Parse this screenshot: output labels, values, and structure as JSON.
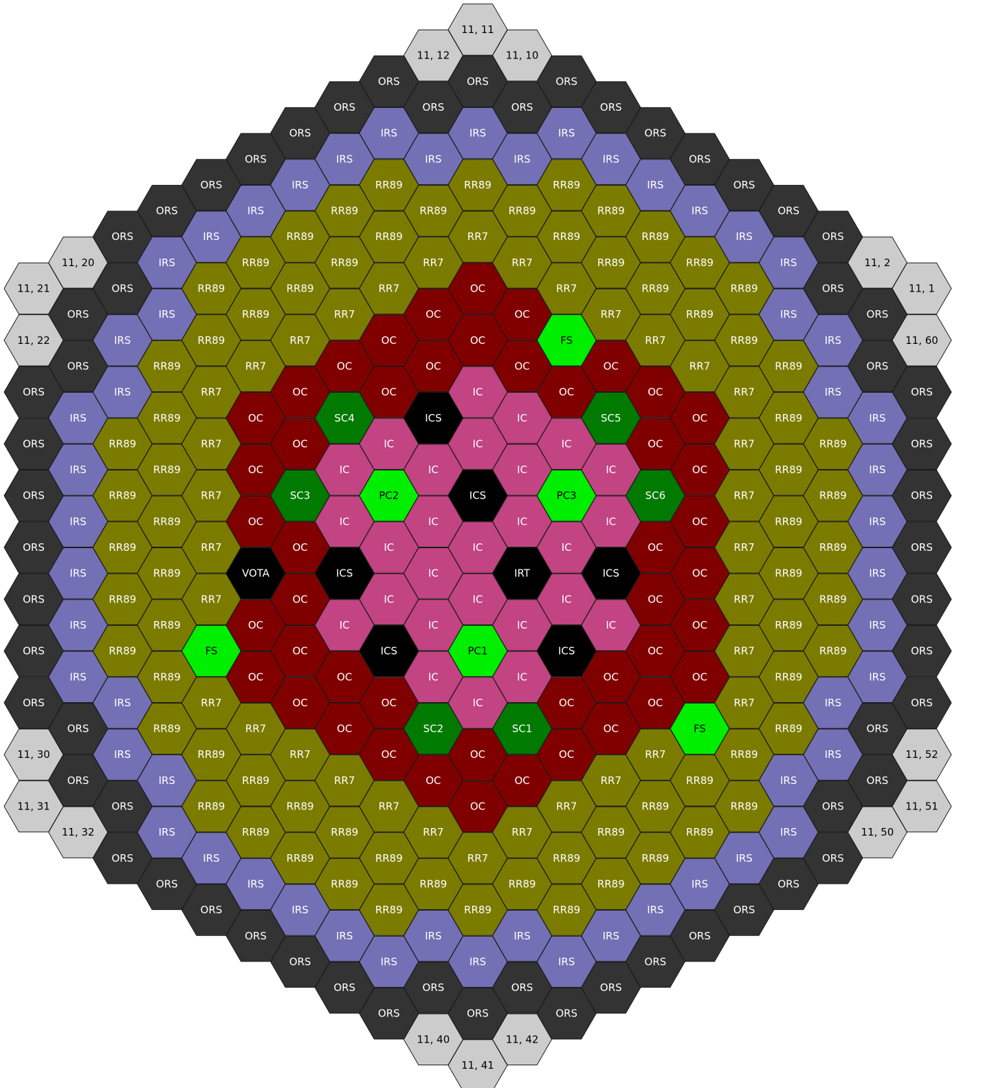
{
  "colors": {
    "ORS": {
      "fill": "#333333",
      "text": "#ffffff"
    },
    "IRS": {
      "fill": "#7370b5",
      "text": "#ffffff"
    },
    "RR89": {
      "fill": "#7b7b00",
      "text": "#ffffff"
    },
    "RR7": {
      "fill": "#7b7b00",
      "text": "#ffffff"
    },
    "OC": {
      "fill": "#800000",
      "text": "#ffffff"
    },
    "IC": {
      "fill": "#c24482",
      "text": "#ffffff"
    },
    "ICS": {
      "fill": "#000000",
      "text": "#ffffff"
    },
    "IRT": {
      "fill": "#000000",
      "text": "#ffffff"
    },
    "VOTA": {
      "fill": "#000000",
      "text": "#ffffff"
    },
    "SC": {
      "fill": "#007a00",
      "text": "#ffffff"
    },
    "PC": {
      "fill": "#00ee00",
      "text": "#000000"
    },
    "FS": {
      "fill": "#00ee00",
      "text": "#000000"
    },
    "EMPTY": {
      "fill": "#cccccc",
      "text": "#000000"
    }
  },
  "rows": [
    [
      "11, 11"
    ],
    [
      "11, 12",
      "11, 10"
    ],
    [
      "ORS",
      "ORS",
      "ORS"
    ],
    [
      "ORS",
      "ORS",
      "ORS",
      "ORS"
    ],
    [
      "ORS",
      "IRS",
      "IRS",
      "IRS",
      "ORS"
    ],
    [
      "ORS",
      "IRS",
      "IRS",
      "IRS",
      "IRS",
      "ORS"
    ],
    [
      "ORS",
      "IRS",
      "RR89",
      "RR89",
      "RR89",
      "IRS",
      "ORS"
    ],
    [
      "ORS",
      "IRS",
      "RR89",
      "RR89",
      "RR89",
      "RR89",
      "IRS",
      "ORS"
    ],
    [
      "ORS",
      "IRS",
      "RR89",
      "RR89",
      "RR7",
      "RR89",
      "RR89",
      "IRS",
      "ORS"
    ],
    [
      "11, 20",
      "IRS",
      "RR89",
      "RR89",
      "RR7",
      "RR7",
      "RR89",
      "RR89",
      "IRS",
      "11, 2"
    ],
    [
      "11, 21",
      "ORS",
      "RR89",
      "RR89",
      "RR7",
      "OC",
      "RR7",
      "RR89",
      "RR89",
      "ORS",
      "11, 1"
    ],
    [
      "ORS",
      "IRS",
      "RR89",
      "RR7",
      "OC",
      "OC",
      "RR7",
      "RR89",
      "IRS",
      "ORS"
    ],
    [
      "11, 22",
      "IRS",
      "RR89",
      "RR7",
      "OC",
      "OC",
      "FS",
      "RR7",
      "RR89",
      "IRS",
      "11, 60"
    ],
    [
      "ORS",
      "RR89",
      "RR7",
      "OC",
      "OC",
      "OC",
      "OC",
      "RR7",
      "RR89",
      "ORS"
    ],
    [
      "ORS",
      "IRS",
      "RR7",
      "OC",
      "OC",
      "IC",
      "OC",
      "OC",
      "RR7",
      "IRS",
      "ORS"
    ],
    [
      "IRS",
      "RR89",
      "OC",
      "SC4",
      "ICS",
      "IC",
      "SC5",
      "OC",
      "RR89",
      "IRS"
    ],
    [
      "ORS",
      "RR89",
      "RR7",
      "OC",
      "IC",
      "IC",
      "IC",
      "OC",
      "RR7",
      "RR89",
      "ORS"
    ],
    [
      "IRS",
      "RR89",
      "OC",
      "IC",
      "IC",
      "IC",
      "IC",
      "OC",
      "RR89",
      "IRS"
    ],
    [
      "ORS",
      "RR89",
      "RR7",
      "SC3",
      "PC2",
      "ICS",
      "PC3",
      "SC6",
      "RR7",
      "RR89",
      "ORS"
    ],
    [
      "IRS",
      "RR89",
      "OC",
      "IC",
      "IC",
      "IC",
      "IC",
      "OC",
      "RR89",
      "IRS"
    ],
    [
      "ORS",
      "RR89",
      "RR7",
      "OC",
      "IC",
      "IC",
      "IC",
      "OC",
      "RR7",
      "RR89",
      "ORS"
    ],
    [
      "IRS",
      "RR89",
      "VOTA",
      "ICS",
      "IC",
      "IRT",
      "ICS",
      "OC",
      "RR89",
      "IRS"
    ],
    [
      "ORS",
      "RR89",
      "RR7",
      "OC",
      "IC",
      "IC",
      "IC",
      "OC",
      "RR7",
      "RR89",
      "ORS"
    ],
    [
      "IRS",
      "RR89",
      "OC",
      "IC",
      "IC",
      "IC",
      "IC",
      "OC",
      "RR89",
      "IRS"
    ],
    [
      "ORS",
      "RR89",
      "FS",
      "OC",
      "ICS",
      "PC1",
      "ICS",
      "OC",
      "RR7",
      "RR89",
      "ORS"
    ],
    [
      "IRS",
      "RR89",
      "OC",
      "OC",
      "IC",
      "IC",
      "OC",
      "OC",
      "RR89",
      "IRS"
    ],
    [
      "ORS",
      "IRS",
      "RR7",
      "OC",
      "OC",
      "IC",
      "OC",
      "OC",
      "RR7",
      "IRS",
      "ORS"
    ],
    [
      "ORS",
      "RR89",
      "RR7",
      "OC",
      "SC2",
      "SC1",
      "OC",
      "FS",
      "RR89",
      "ORS"
    ],
    [
      "11, 30",
      "IRS",
      "RR89",
      "RR7",
      "OC",
      "OC",
      "OC",
      "RR7",
      "RR89",
      "IRS",
      "11, 52"
    ],
    [
      "ORS",
      "IRS",
      "RR89",
      "RR7",
      "OC",
      "OC",
      "RR7",
      "RR89",
      "IRS",
      "ORS"
    ],
    [
      "11, 31",
      "ORS",
      "RR89",
      "RR89",
      "RR7",
      "OC",
      "RR7",
      "RR89",
      "RR89",
      "ORS",
      "11, 51"
    ],
    [
      "11, 32",
      "IRS",
      "RR89",
      "RR89",
      "RR7",
      "RR7",
      "RR89",
      "RR89",
      "IRS",
      "11, 50"
    ],
    [
      "ORS",
      "IRS",
      "RR89",
      "RR89",
      "RR7",
      "RR89",
      "RR89",
      "IRS",
      "ORS"
    ],
    [
      "ORS",
      "IRS",
      "RR89",
      "RR89",
      "RR89",
      "RR89",
      "IRS",
      "ORS"
    ],
    [
      "ORS",
      "IRS",
      "RR89",
      "RR89",
      "RR89",
      "IRS",
      "ORS"
    ],
    [
      "ORS",
      "IRS",
      "IRS",
      "IRS",
      "IRS",
      "ORS"
    ],
    [
      "ORS",
      "IRS",
      "IRS",
      "IRS",
      "ORS"
    ],
    [
      "ORS",
      "ORS",
      "ORS",
      "ORS"
    ],
    [
      "ORS",
      "ORS",
      "ORS"
    ],
    [
      "11, 40",
      "11, 42"
    ],
    [
      "11, 41"
    ]
  ]
}
